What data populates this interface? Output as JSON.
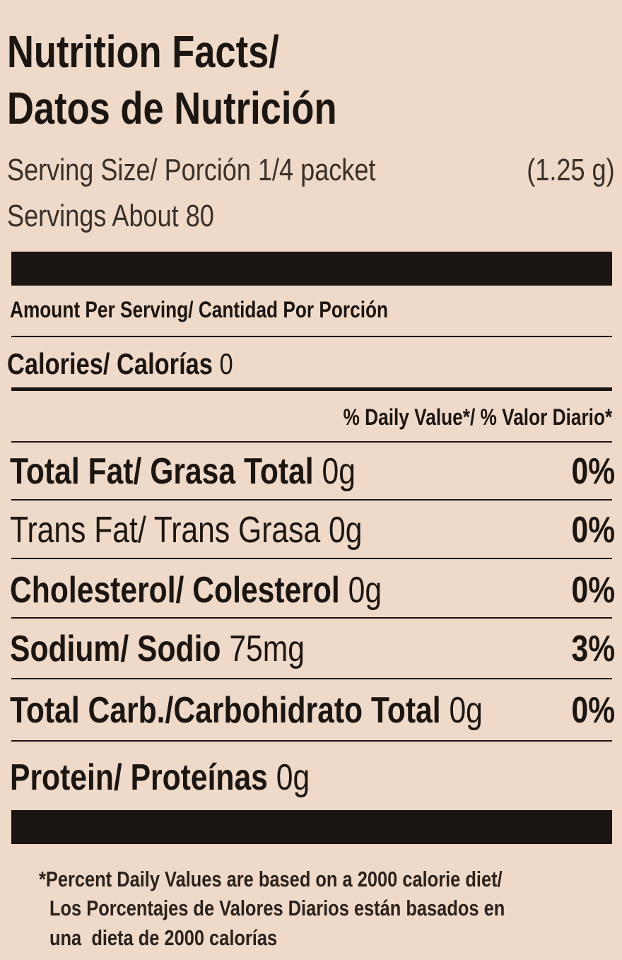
{
  "title": [
    "Nutrition Facts/",
    "Datos de Nutrición"
  ],
  "serving_size": {
    "label": "Serving Size/ Porción 1/4 packet",
    "amount": "(1.25 g)"
  },
  "servings": "Servings About 80",
  "amount_per_serving": "Amount Per Serving/ Cantidad Por Porción",
  "calories": {
    "label": "Calories/ Calorías",
    "value": "0"
  },
  "daily_value_header": "% Daily Value*/ % Valor Diario*",
  "rows": [
    {
      "name": "Total Fat/ Grasa Total",
      "amount": "0g",
      "dv": "0%"
    },
    {
      "name": "Trans Fat/ Trans Grasa",
      "amount": "0g",
      "dv": "0%"
    },
    {
      "name": "Cholesterol/ Colesterol",
      "amount": "0g",
      "dv": "0%"
    },
    {
      "name": "Sodium/ Sodio",
      "amount": "75mg",
      "dv": "3%"
    },
    {
      "name": "Total Carb./Carbohidrato Total",
      "amount": "0g",
      "dv": "0%"
    },
    {
      "name": "Protein/ Proteínas",
      "amount": "0g"
    }
  ],
  "footnote": [
    "*Percent Daily Values are based on a 2000 calorie diet/",
    "Los Porcentajes de Valores Diarios están basados en",
    "una  dieta de 2000 calorías"
  ]
}
